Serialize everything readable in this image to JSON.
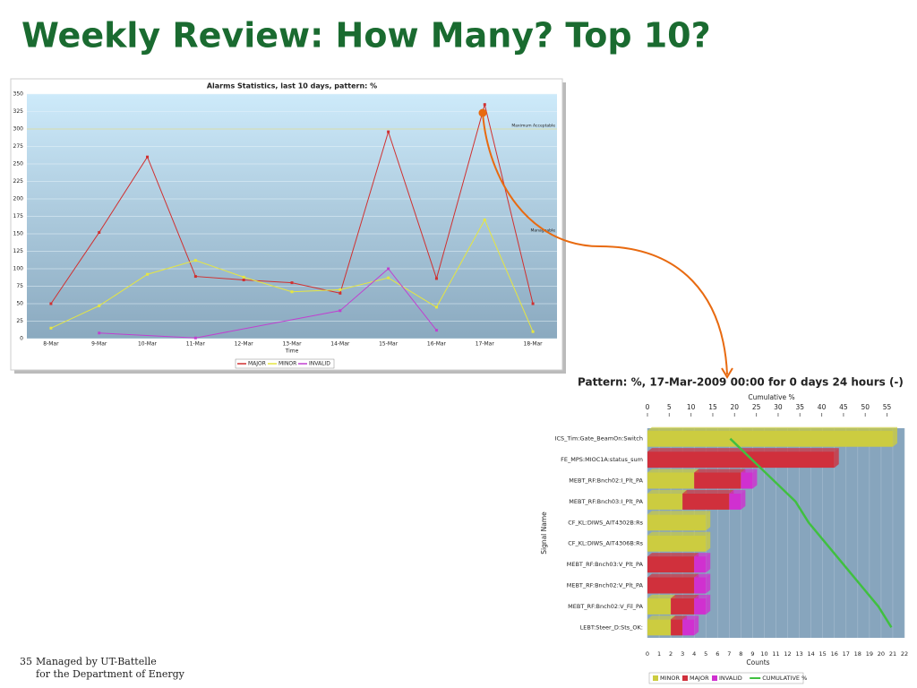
{
  "slide_title": "Weekly Review: How Many? Top 10?",
  "footer": {
    "page": "35",
    "line1": "Managed by UT-Battelle",
    "line2": "for the Department of Energy"
  },
  "chart_data": [
    {
      "type": "line",
      "title": "Alarms Statistics, last 10 days, pattern: %",
      "x_label": "Time",
      "categories": [
        "8-Mar",
        "9-Mar",
        "10-Mar",
        "11-Mar",
        "12-Mar",
        "13-Mar",
        "14-Mar",
        "15-Mar",
        "16-Mar",
        "17-Mar",
        "18-Mar"
      ],
      "series": [
        {
          "name": "MAJOR",
          "color": "#d03030",
          "values": [
            50,
            152,
            260,
            89,
            84,
            80,
            65,
            296,
            86,
            335,
            50
          ]
        },
        {
          "name": "MINOR",
          "color": "#e6e640",
          "values": [
            15,
            47,
            92,
            112,
            88,
            67,
            70,
            87,
            45,
            170,
            10
          ]
        },
        {
          "name": "INVALID",
          "color": "#c040d0",
          "x": [
            "9-Mar",
            "11-Mar",
            "14-Mar",
            "15-Mar",
            "16-Mar"
          ],
          "values": [
            8,
            1,
            40,
            100,
            12
          ]
        }
      ],
      "annotations": [
        {
          "text": "Maximum Acceptable",
          "y": 300
        },
        {
          "text": "Manageable",
          "y": 150
        }
      ],
      "ylim": [
        0,
        350
      ],
      "yticks": [
        0,
        25,
        50,
        75,
        100,
        125,
        150,
        175,
        200,
        225,
        250,
        275,
        300,
        325,
        350
      ],
      "grid": true,
      "legend": "bottom"
    },
    {
      "type": "bar",
      "orientation": "horizontal",
      "stacked": true,
      "title": "Pattern: %, 17-Mar-2009 00:00 for 0 days 24 hours (-)",
      "x_label": "Counts",
      "x2_label": "Cumulative %",
      "y_label": "Signal Name",
      "categories": [
        "ICS_Tim:Gate_BeamOn:Switch",
        "FE_MPS:MIOC1A:status_sum",
        "MEBT_RF:Bnch02:I_Plt_PA",
        "MEBT_RF:Bnch03:I_Plt_PA",
        "CF_KL:DIWS_AIT4302B:Rs",
        "CF_KL:DIWS_AIT4306B:Rs",
        "MEBT_RF:Bnch03:V_Plt_PA",
        "MEBT_RF:Bnch02:V_Plt_PA",
        "MEBT_RF:Bnch02:V_Fil_PA",
        "LEBT:Steer_D:Sts_OK:"
      ],
      "series": [
        {
          "name": "MINOR",
          "color": "#cccc40",
          "values": [
            21,
            0,
            4,
            3,
            5,
            5,
            0,
            0,
            2,
            2
          ]
        },
        {
          "name": "MAJOR",
          "color": "#d0303c",
          "values": [
            0,
            16,
            4,
            4,
            0,
            0,
            4,
            4,
            2,
            1
          ]
        },
        {
          "name": "INVALID",
          "color": "#d030d0",
          "values": [
            0,
            0,
            1,
            1,
            0,
            0,
            1,
            1,
            1,
            1
          ]
        },
        {
          "name": "CUMULATIVE %",
          "color": "#40c040",
          "type": "line",
          "axis": "x2",
          "values": [
            19,
            24,
            29,
            34,
            37,
            41,
            45,
            49,
            53,
            56
          ]
        }
      ],
      "xlim": [
        0,
        22
      ],
      "xticks": [
        0,
        1,
        2,
        3,
        4,
        5,
        6,
        7,
        8,
        9,
        10,
        11,
        12,
        13,
        14,
        15,
        16,
        17,
        18,
        19,
        20,
        21,
        22
      ],
      "x2lim": [
        0,
        59
      ],
      "x2ticks": [
        0,
        5,
        10,
        15,
        20,
        25,
        30,
        35,
        40,
        45,
        50,
        55
      ],
      "grid": true,
      "legend": "bottom"
    }
  ]
}
